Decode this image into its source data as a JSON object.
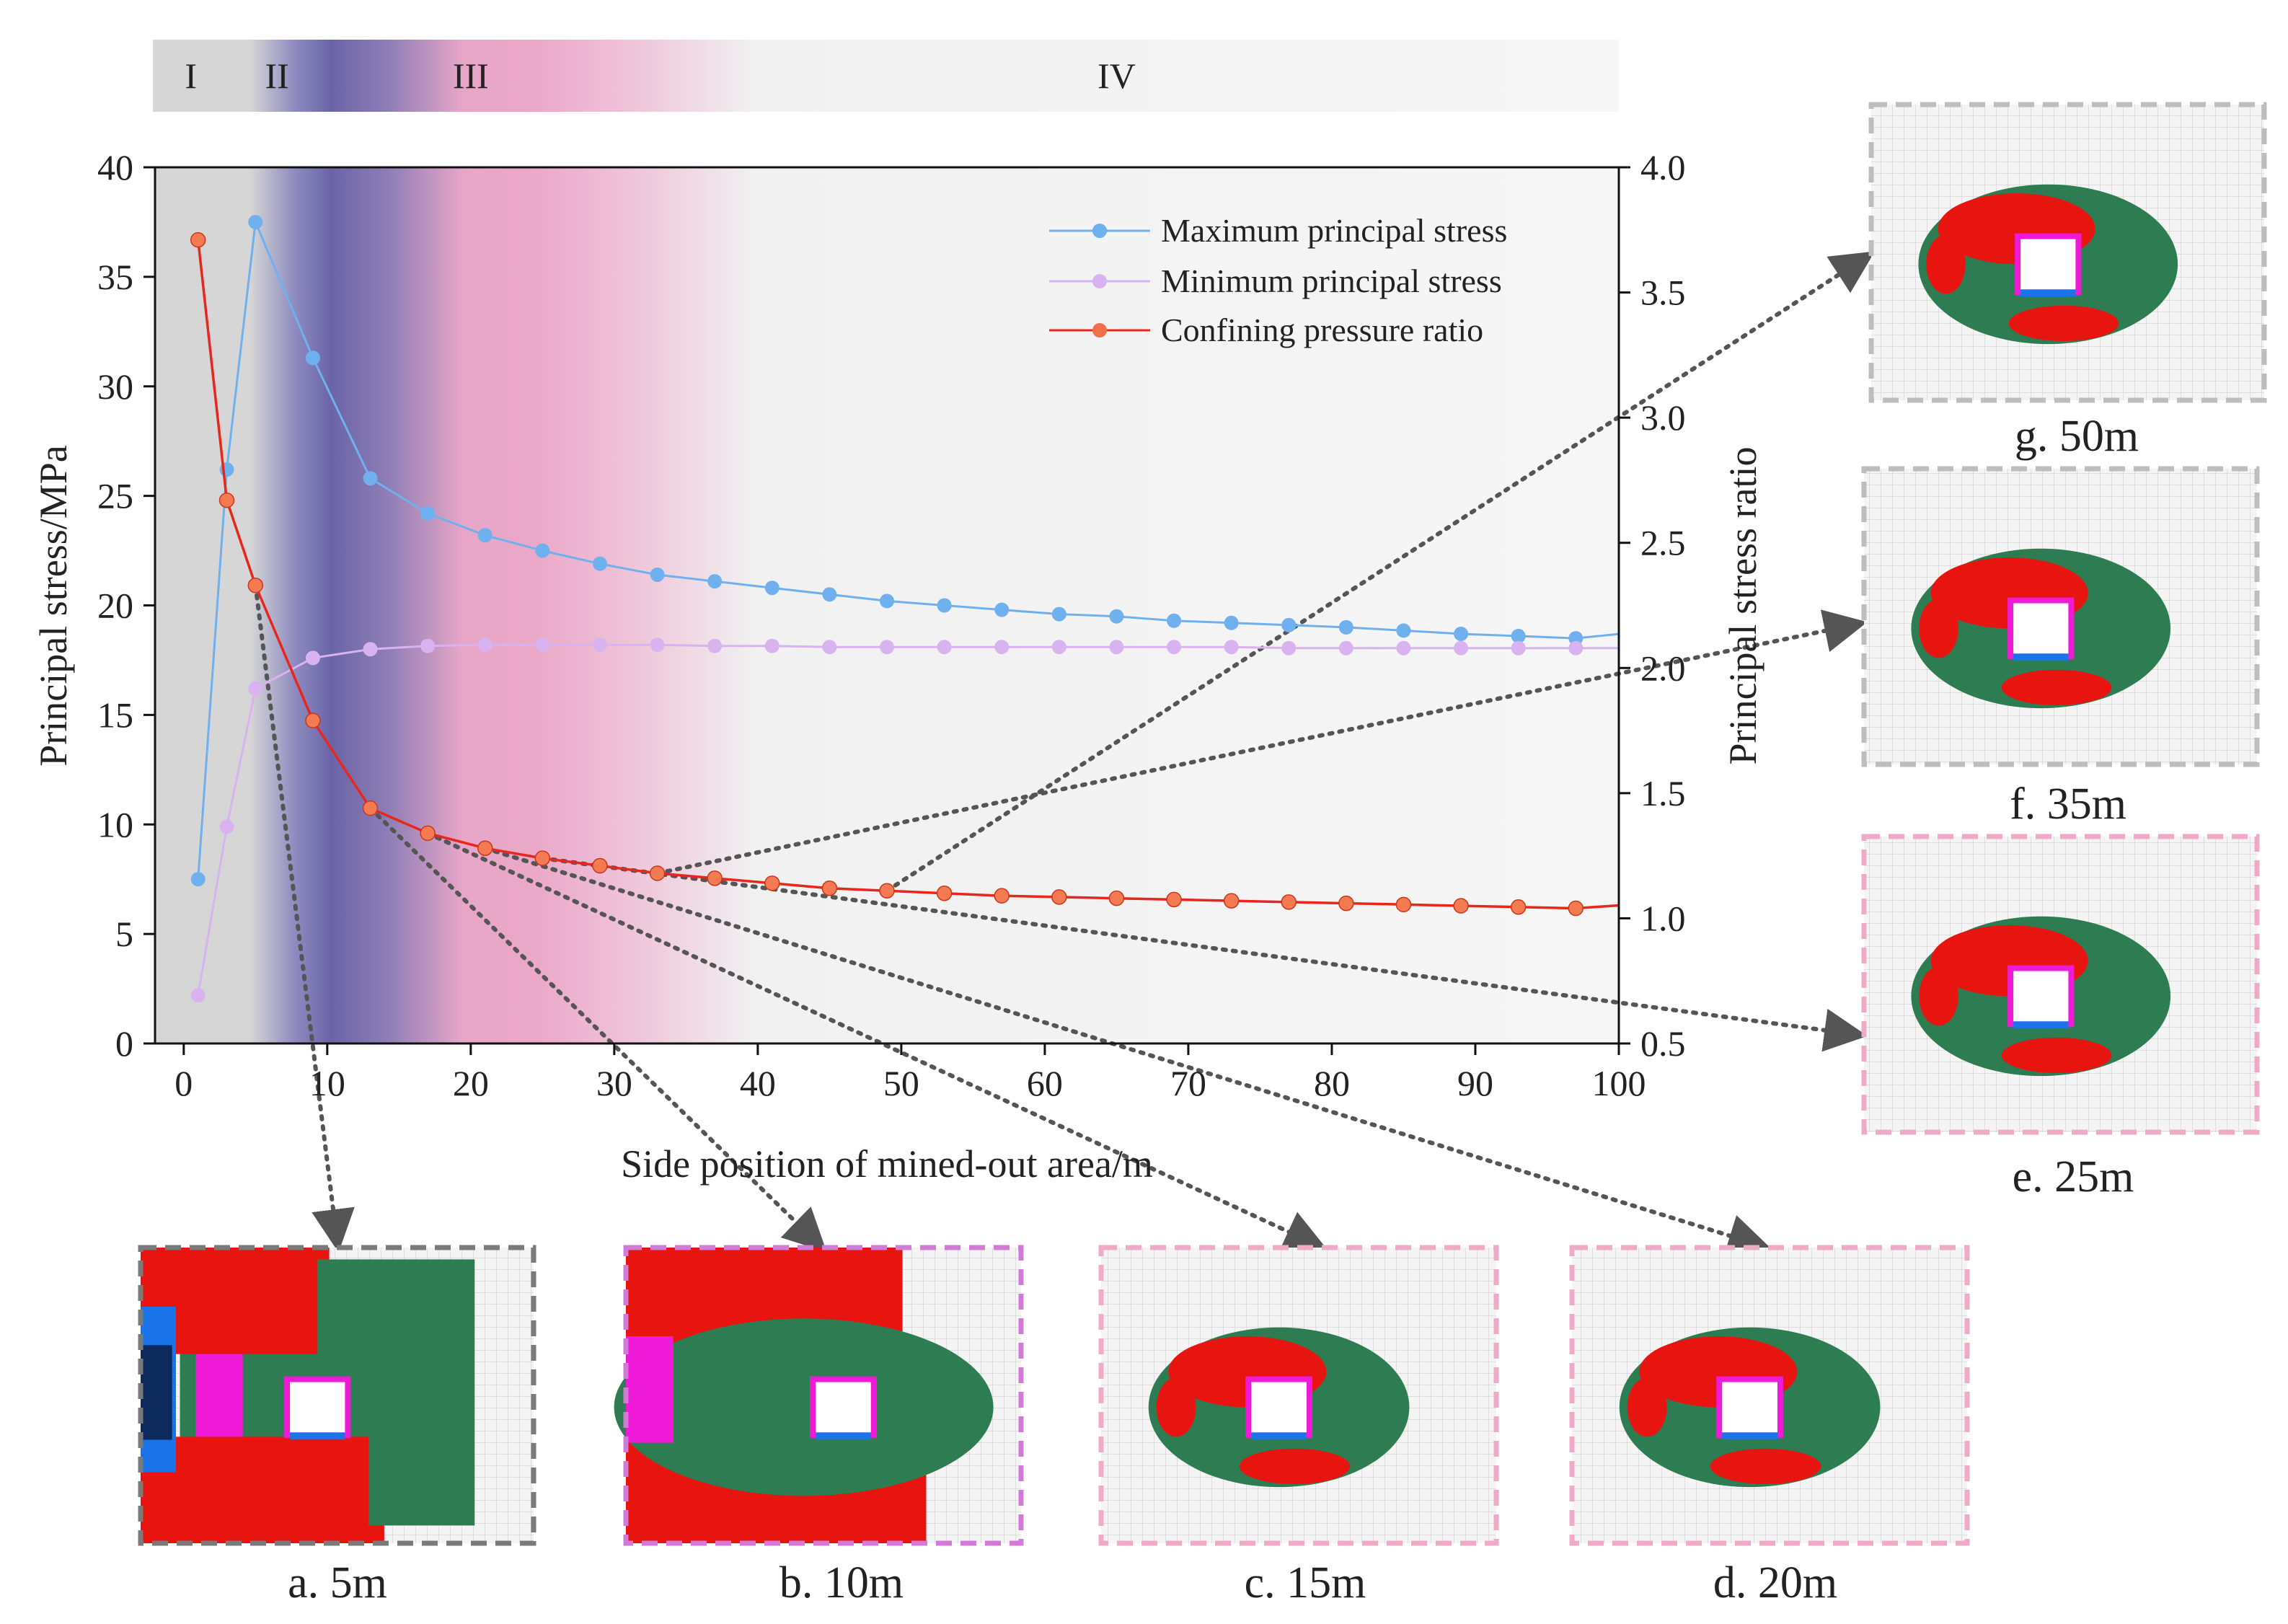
{
  "chart_data": {
    "type": "line",
    "xlabel": "Side position of mined-out area/m",
    "ylabel_left": "Principal stress/MPa",
    "ylabel_right": "Principal stress ratio",
    "xlim": [
      -2,
      100
    ],
    "ylim_left": [
      0,
      40
    ],
    "ylim_right": [
      0.5,
      4.0
    ],
    "x_ticks": [
      0,
      10,
      20,
      30,
      40,
      50,
      60,
      70,
      80,
      90,
      100
    ],
    "y_left_ticks": [
      0,
      5,
      10,
      15,
      20,
      25,
      30,
      35,
      40
    ],
    "y_right_ticks": [
      "0.5",
      "1.0",
      "1.5",
      "2.0",
      "2.5",
      "3.0",
      "3.5",
      "4.0"
    ],
    "zones": [
      {
        "label": "I",
        "from": -2,
        "to": 3
      },
      {
        "label": "II",
        "from": 3,
        "to": 10
      },
      {
        "label": "III",
        "from": 10,
        "to": 30
      },
      {
        "label": "IV",
        "from": 30,
        "to": 100
      }
    ],
    "x": [
      1,
      3,
      5,
      9,
      13,
      17,
      21,
      25,
      29,
      33,
      37,
      41,
      45,
      49,
      53,
      57,
      61,
      65,
      69,
      73,
      77,
      81,
      85,
      89,
      93,
      97
    ],
    "series": [
      {
        "name": "Maximum principal stress",
        "axis": "left",
        "color": "#6fb1ee",
        "values": [
          7.5,
          26.2,
          37.5,
          31.3,
          25.8,
          24.2,
          23.2,
          22.5,
          21.9,
          21.4,
          21.1,
          20.8,
          20.5,
          20.2,
          20.0,
          19.8,
          19.6,
          19.5,
          19.3,
          19.2,
          19.1,
          19.0,
          18.85,
          18.7,
          18.6,
          18.5
        ]
      },
      {
        "name": "Minimum principal stress",
        "axis": "left",
        "color": "#d9b2f0",
        "values": [
          2.2,
          9.9,
          16.2,
          17.6,
          18.0,
          18.15,
          18.2,
          18.2,
          18.2,
          18.2,
          18.15,
          18.15,
          18.1,
          18.1,
          18.1,
          18.1,
          18.1,
          18.1,
          18.1,
          18.1,
          18.05,
          18.05,
          18.05,
          18.05,
          18.05,
          18.05
        ]
      },
      {
        "name": "Confining pressure ratio",
        "axis": "right",
        "color": "#e8261c",
        "values": [
          3.71,
          2.67,
          2.33,
          1.79,
          1.44,
          1.34,
          1.28,
          1.24,
          1.21,
          1.18,
          1.16,
          1.14,
          1.12,
          1.11,
          1.1,
          1.09,
          1.085,
          1.08,
          1.075,
          1.07,
          1.065,
          1.06,
          1.055,
          1.05,
          1.045,
          1.04
        ]
      }
    ],
    "panels": [
      {
        "id": "a",
        "label": "a. 5m",
        "border": "#7a7a7a"
      },
      {
        "id": "b",
        "label": "b. 10m",
        "border": "#d37ad8"
      },
      {
        "id": "c",
        "label": "c. 15m",
        "border": "#f0aac8"
      },
      {
        "id": "d",
        "label": "d. 20m",
        "border": "#f0aac8"
      },
      {
        "id": "e",
        "label": "e. 25m",
        "border": "#f0aac8"
      },
      {
        "id": "f",
        "label": "f. 35m",
        "border": "#bdbdbd"
      },
      {
        "id": "g",
        "label": "g. 50m",
        "border": "#bdbdbd"
      }
    ]
  }
}
